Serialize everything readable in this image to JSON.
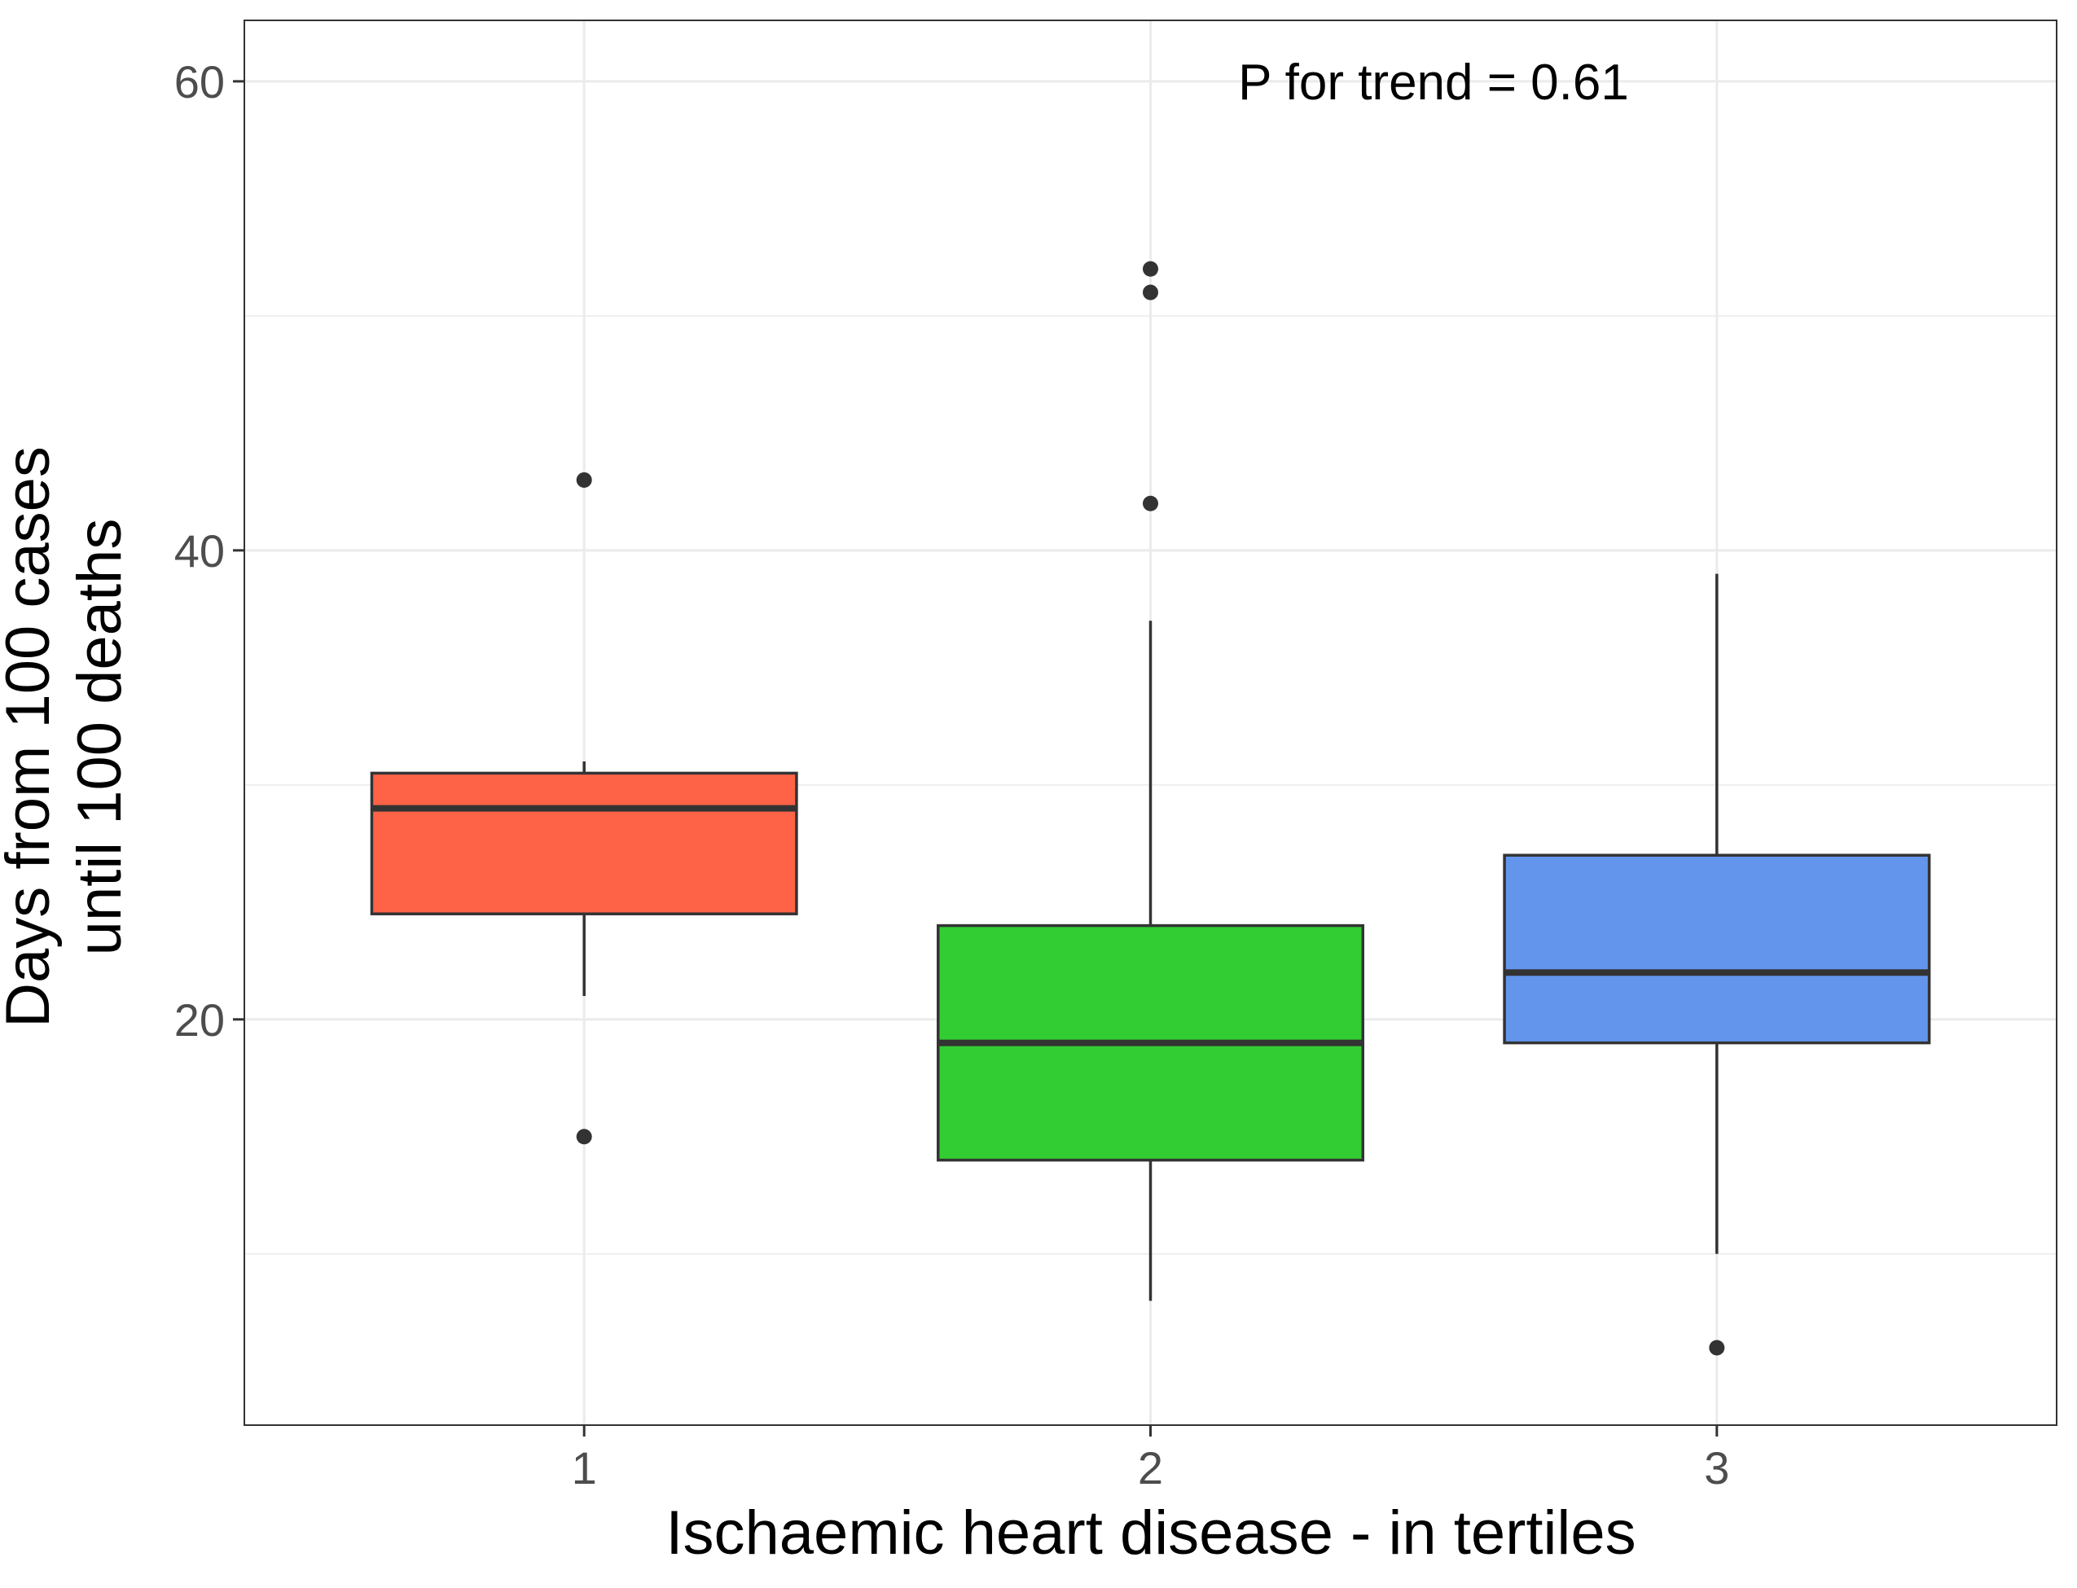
{
  "chart_data": {
    "type": "box",
    "xlabel": "Ischaemic heart disease - in tertiles",
    "ylabel_lines": [
      "Days from 100 cases",
      "until 100 deaths"
    ],
    "annotation": "P for trend = 0.61",
    "ylim": [
      2.7,
      62.6
    ],
    "y_major_ticks": [
      20,
      40,
      60
    ],
    "y_major_tick_labels": [
      "20",
      "40",
      "60"
    ],
    "y_minor_gridlines": [
      10,
      30,
      50
    ],
    "grid": true,
    "categories": [
      "1",
      "2",
      "3"
    ],
    "boxes": [
      {
        "category": "1",
        "fill": "#FF6347",
        "whisker_low": 21,
        "q1": 24.5,
        "median": 29,
        "q3": 30.5,
        "whisker_high": 31,
        "outliers": [
          43,
          15
        ]
      },
      {
        "category": "2",
        "fill": "#32CD32",
        "whisker_low": 8,
        "q1": 14,
        "median": 19,
        "q3": 24,
        "whisker_high": 37,
        "outliers": [
          52,
          51,
          42
        ]
      },
      {
        "category": "3",
        "fill": "#6495ED",
        "whisker_low": 10,
        "q1": 19,
        "median": 22,
        "q3": 27,
        "whisker_high": 39,
        "outliers": [
          6
        ]
      }
    ]
  }
}
